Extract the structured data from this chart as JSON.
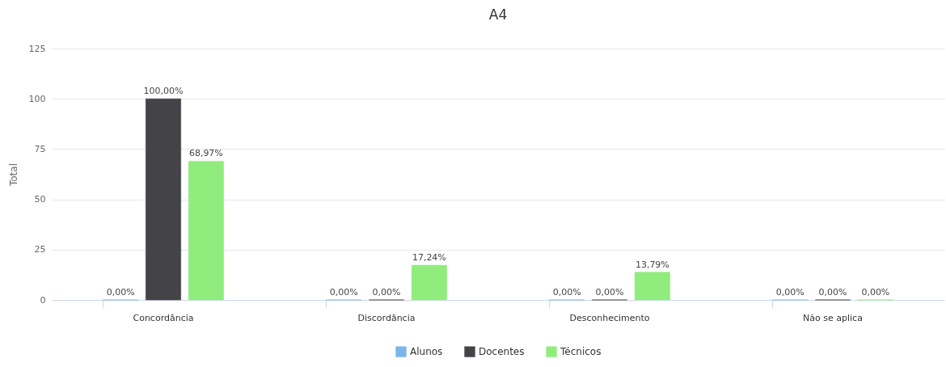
{
  "chart_data": {
    "type": "bar",
    "title": "A4",
    "ylabel": "Total",
    "categories": [
      "Concordância",
      "Discordância",
      "Desconhecimento",
      "Não se aplica"
    ],
    "series": [
      {
        "name": "Alunos",
        "color": "#7cb5ec",
        "values": [
          0,
          0,
          0,
          0
        ],
        "value_labels": [
          "0,00%",
          "0,00%",
          "0,00%",
          "0,00%"
        ]
      },
      {
        "name": "Docentes",
        "color": "#434348",
        "values": [
          100,
          0,
          0,
          0
        ],
        "value_labels": [
          "100,00%",
          "0,00%",
          "0,00%",
          "0,00%"
        ]
      },
      {
        "name": "Técnicos",
        "color": "#90ed7d",
        "values": [
          68.97,
          17.24,
          13.79,
          0
        ],
        "value_labels": [
          "68,97%",
          "17,24%",
          "13,79%",
          "0,00%"
        ]
      }
    ],
    "ylim": [
      0,
      125
    ],
    "yticks": [
      0,
      25,
      50,
      75,
      100,
      125
    ],
    "grid": "y",
    "legend": "bottom"
  }
}
